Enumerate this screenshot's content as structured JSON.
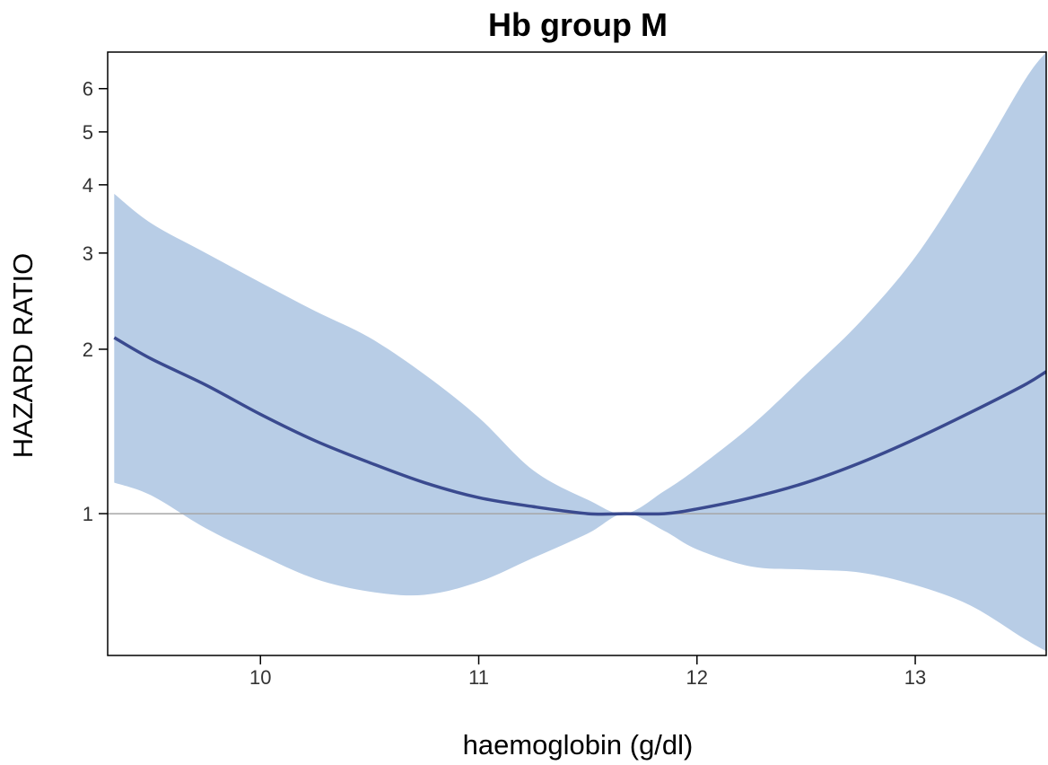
{
  "chart_data": {
    "type": "line",
    "title": "Hb group M",
    "xlabel": "haemoglobin (g/dl)",
    "ylabel": "HAZARD RATIO",
    "xlim": [
      9.3,
      13.6
    ],
    "ylim": [
      0.55,
      7.0
    ],
    "y_scale": "log",
    "x_ticks": [
      10,
      11,
      12,
      13
    ],
    "y_ticks": [
      1,
      2,
      3,
      4,
      5,
      6
    ],
    "reference_line": {
      "y": 1,
      "color": "#a6a6a6"
    },
    "colors": {
      "line": "#3a4a8f",
      "band": "#b8cde6",
      "axis": "#000000"
    },
    "legend": "none",
    "grid": false,
    "series": [
      {
        "x": [
          9.33,
          9.5,
          9.75,
          10.0,
          10.25,
          10.5,
          10.75,
          11.0,
          11.25,
          11.5,
          11.67,
          11.85,
          12.0,
          12.25,
          12.5,
          12.75,
          13.0,
          13.25,
          13.5,
          13.6
        ],
        "y": [
          2.1,
          1.92,
          1.72,
          1.52,
          1.36,
          1.24,
          1.14,
          1.07,
          1.03,
          1.0,
          1.0,
          1.0,
          1.02,
          1.07,
          1.14,
          1.24,
          1.37,
          1.53,
          1.72,
          1.82
        ],
        "lower": [
          1.14,
          1.08,
          0.94,
          0.84,
          0.76,
          0.72,
          0.71,
          0.75,
          0.83,
          0.92,
          1.0,
          0.93,
          0.86,
          0.8,
          0.79,
          0.78,
          0.74,
          0.68,
          0.59,
          0.56
        ],
        "upper": [
          3.85,
          3.4,
          3.0,
          2.65,
          2.35,
          2.1,
          1.8,
          1.5,
          1.2,
          1.06,
          1.0,
          1.1,
          1.21,
          1.45,
          1.8,
          2.25,
          2.95,
          4.2,
          6.2,
          7.0
        ]
      }
    ]
  }
}
